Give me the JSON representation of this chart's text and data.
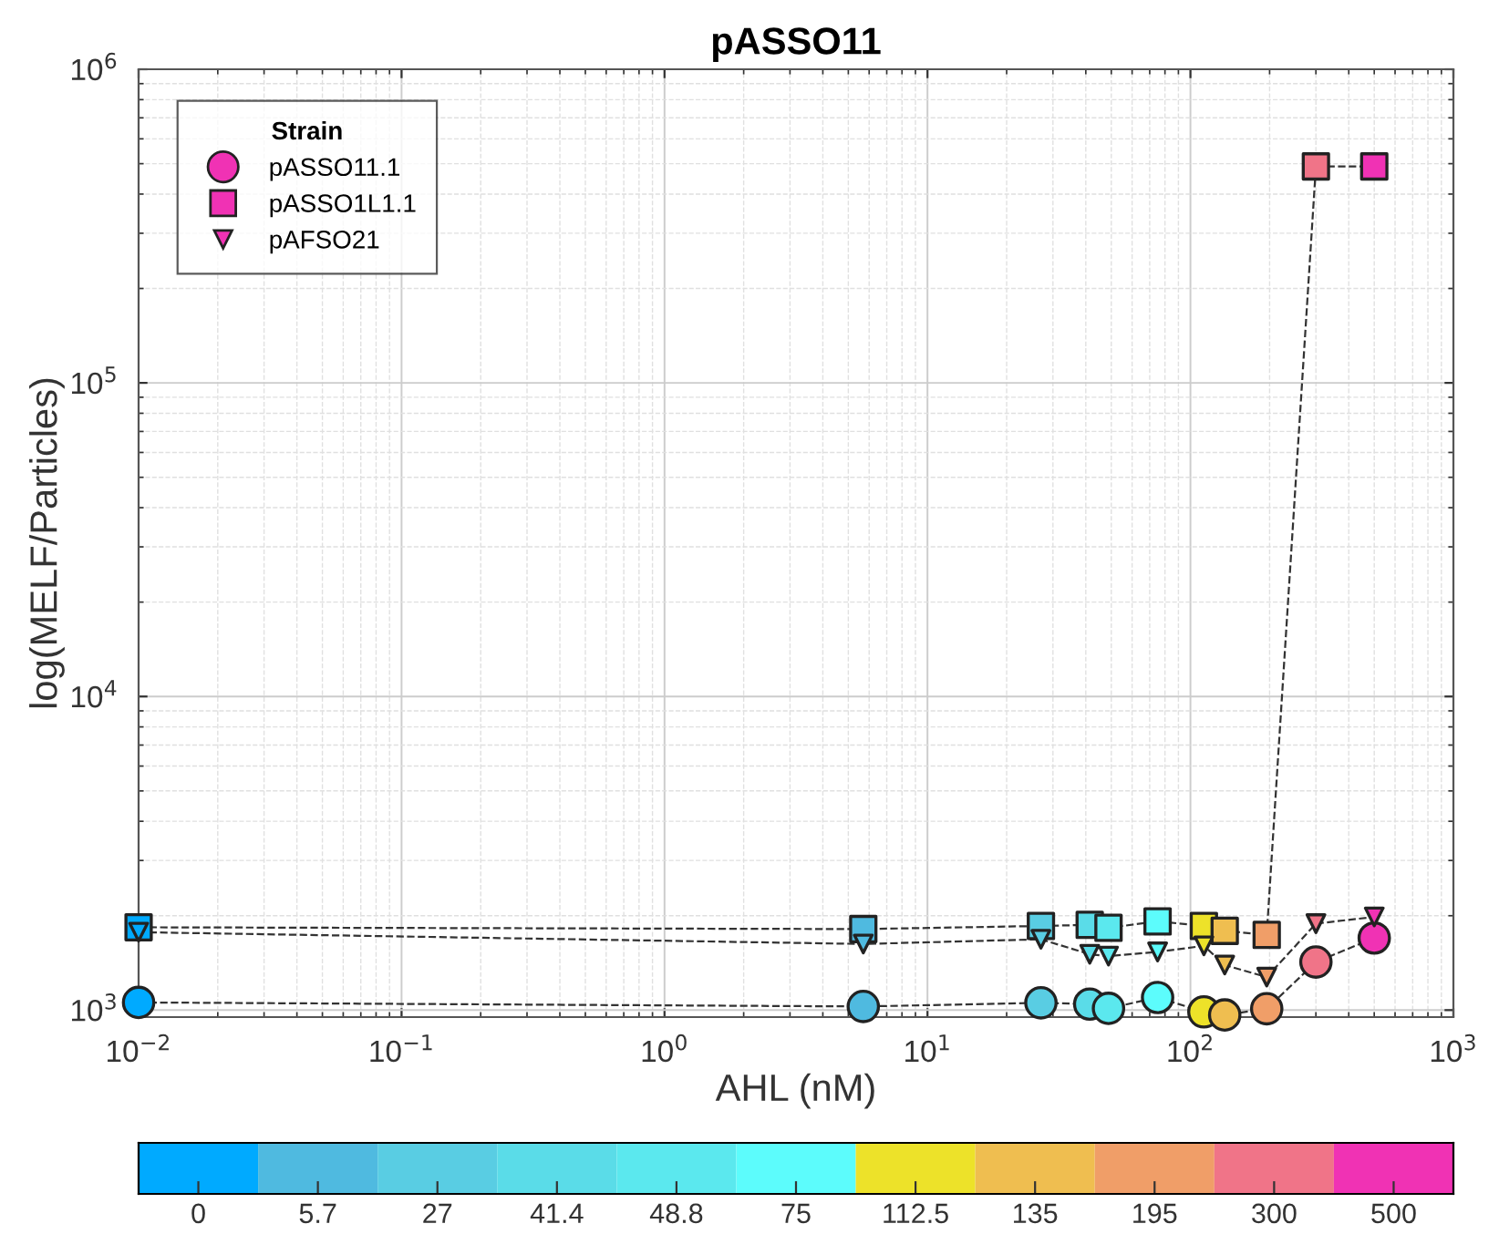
{
  "chart_data": [
    {
      "type": "line",
      "title": "pASSO11",
      "xlabel": "AHL (nM)",
      "ylabel": "log(MELF/Particles)",
      "legend_title": "Strain",
      "legend": "top left",
      "log": "xy",
      "grid": true,
      "line_style": "dashed",
      "xlim": [
        0.01,
        1000
      ],
      "xticks": [
        {
          "value": 0.01,
          "label": "10$^{−2}$"
        },
        {
          "value": 0.1,
          "label": "10$^{−1}$"
        },
        {
          "value": 1,
          "label": "10$^{0}$"
        },
        {
          "value": 10,
          "label": "10$^{1}$"
        },
        {
          "value": 100,
          "label": "10$^{2}$"
        },
        {
          "value": 1000,
          "label": "10$^{3}$"
        }
      ],
      "ylim": [
        950,
        1000000
      ],
      "yticks": [
        {
          "value": 1000,
          "label": "10$^{3}$"
        },
        {
          "value": 10000,
          "label": "10$^{4}$"
        },
        {
          "value": 100000,
          "label": "10$^{5}$"
        },
        {
          "value": 1000000,
          "label": "10$^{6}$"
        }
      ],
      "series": [
        {
          "name": "pASSO11.1",
          "color": "#333333",
          "marker": "circle",
          "x": [
            0.01,
            5.7,
            27,
            41.4,
            48.8,
            75,
            112.5,
            135,
            195,
            300,
            500
          ],
          "values": [
            1058,
            1027,
            1055,
            1045,
            1013,
            1097,
            987,
            965,
            1010,
            1423,
            1698
          ],
          "colors": [
            "#00aaff",
            "#4fbae0",
            "#59cde3",
            "#5adce8",
            "#5be8ee",
            "#5cfcfc",
            "#ede229",
            "#efbe50",
            "#f09e68",
            "#f07488",
            "#f032b4"
          ]
        },
        {
          "name": "pASSO1L1.1",
          "color": "#333333",
          "marker": "square",
          "x": [
            0.01,
            5.7,
            27,
            41.4,
            48.8,
            75,
            112.5,
            135,
            195,
            300,
            500
          ],
          "values": [
            1837,
            1813,
            1855,
            1870,
            1830,
            1918,
            1855,
            1790,
            1737,
            490000,
            490000
          ],
          "colors": [
            "#00aaff",
            "#4fbae0",
            "#59cde3",
            "#5adce8",
            "#5be8ee",
            "#5cfcfc",
            "#ede229",
            "#efbe50",
            "#f09e68",
            "#f07488",
            "#f032b4"
          ]
        },
        {
          "name": "pAFSO21",
          "color": "#333333",
          "marker": "triangle",
          "x": [
            0.01,
            5.7,
            27,
            41.4,
            48.8,
            75,
            112.5,
            135,
            195,
            300,
            500
          ],
          "values": [
            1772,
            1625,
            1682,
            1507,
            1487,
            1533,
            1603,
            1392,
            1274,
            1887,
            1982
          ],
          "colors": [
            "#00aaff",
            "#4fbae0",
            "#59cde3",
            "#5adce8",
            "#5be8ee",
            "#5cfcfc",
            "#ede229",
            "#efbe50",
            "#f09e68",
            "#f07488",
            "#f032b4"
          ]
        }
      ]
    },
    {
      "type": "other",
      "categories": [
        "0",
        "5.7",
        "27",
        "41.4",
        "48.8",
        "75",
        "112.5",
        "135",
        "195",
        "300",
        "500"
      ],
      "colors": [
        "#00aaff",
        "#4fbae0",
        "#59cde3",
        "#5adce8",
        "#5be8ee",
        "#5cfcfc",
        "#ede229",
        "#efbe50",
        "#f09e68",
        "#f07488",
        "#f032b4"
      ]
    }
  ]
}
